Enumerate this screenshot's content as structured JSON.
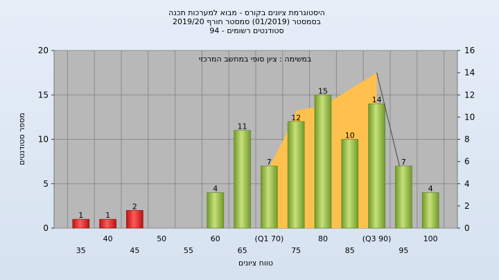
{
  "chart_data": {
    "type": "bar",
    "title_lines": [
      "היסטוגרמת ציונים בקורס - מבוא למערכות תכנה",
      "בסמסטר  (01/2019)  סמסטר חורף 2019/20",
      "סטודנטים רשומים - 94"
    ],
    "inner_label": "במשימה : ציון סופי במחשב המרכזי",
    "ylabel": "מספר סטודנטים",
    "xlabel": "טווח ציונים",
    "categories": [
      "35",
      "40",
      "45",
      "50",
      "55",
      "60",
      "65",
      "(Q1 70)",
      "75",
      "80",
      "85",
      "(Q3 90)",
      "95",
      "100"
    ],
    "values": [
      1,
      1,
      2,
      0,
      0,
      4,
      11,
      7,
      12,
      15,
      10,
      14,
      7,
      4
    ],
    "value_labels": [
      "1",
      "1",
      "2",
      "",
      "",
      "4",
      "11",
      "7",
      "12",
      "15",
      "10",
      "14",
      "7",
      "4"
    ],
    "bar_colors": [
      "#e02020",
      "#e02020",
      "#e02020",
      "#e02020",
      "#e02020",
      "#8fbf3a",
      "#8fbf3a",
      "#8fbf3a",
      "#8fbf3a",
      "#8fbf3a",
      "#8fbf3a",
      "#8fbf3a",
      "#8fbf3a",
      "#8fbf3a"
    ],
    "ylim_left": [
      0,
      20
    ],
    "yticks_left": [
      0,
      5,
      10,
      15,
      20
    ],
    "ylim_right": [
      0,
      16
    ],
    "yticks_right": [
      0,
      2,
      4,
      6,
      8,
      10,
      12,
      14,
      16
    ],
    "area_series": {
      "x_start": "(Q1 70)",
      "x_end": "(Q3 90)",
      "right_axis_values": [
        5.5,
        11,
        14
      ]
    },
    "grid": true,
    "colors": {
      "background": "#dde6f2",
      "plot_bg": "#b8b8b8",
      "area": "#ffc14d",
      "line": "#555555"
    }
  }
}
